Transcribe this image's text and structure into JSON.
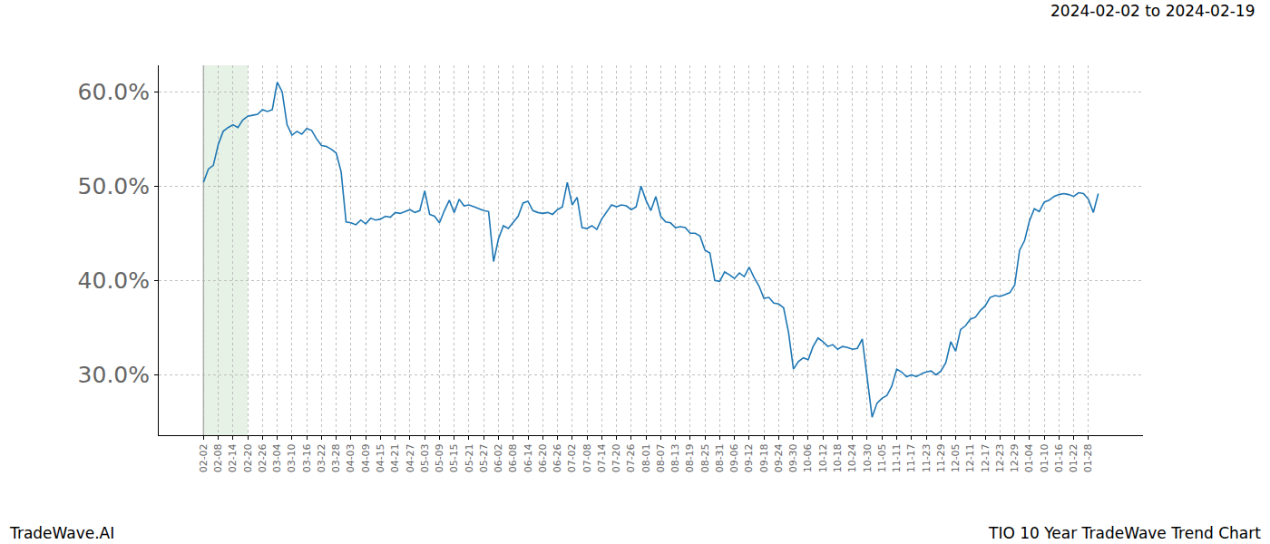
{
  "chart_data": {
    "type": "line",
    "title": "TIO 10 Year TradeWave Trend Chart",
    "subtitle": "2024-02-02 to 2024-02-19",
    "annotations": [
      "TradeWave.AI"
    ],
    "highlight": {
      "start": "02-02",
      "end": "02-20"
    },
    "categories": [
      "02-02",
      null,
      null,
      "02-08",
      null,
      null,
      "02-14",
      null,
      null,
      "02-20",
      null,
      null,
      "02-26",
      null,
      null,
      "03-04",
      null,
      null,
      "03-10",
      null,
      null,
      "03-16",
      null,
      null,
      "03-22",
      null,
      null,
      "03-28",
      null,
      null,
      "04-03",
      null,
      null,
      "04-09",
      null,
      null,
      "04-15",
      null,
      null,
      "04-21",
      null,
      null,
      "04-27",
      null,
      null,
      "05-03",
      null,
      null,
      "05-09",
      null,
      null,
      "05-15",
      null,
      null,
      "05-21",
      null,
      null,
      "05-27",
      null,
      null,
      "06-02",
      null,
      null,
      "06-08",
      null,
      null,
      "06-14",
      null,
      null,
      "06-20",
      null,
      null,
      "06-26",
      null,
      null,
      "07-02",
      null,
      null,
      "07-08",
      null,
      null,
      "07-14",
      null,
      null,
      "07-20",
      null,
      null,
      "07-26",
      null,
      null,
      "08-01",
      null,
      null,
      "08-07",
      null,
      null,
      "08-13",
      null,
      null,
      "08-19",
      null,
      null,
      "08-25",
      null,
      null,
      "08-31",
      null,
      null,
      "09-06",
      null,
      null,
      "09-12",
      null,
      null,
      "09-18",
      null,
      null,
      "09-24",
      null,
      null,
      "09-30",
      null,
      null,
      "10-06",
      null,
      null,
      "10-12",
      null,
      null,
      "10-18",
      null,
      null,
      "10-24",
      null,
      null,
      "10-30",
      null,
      null,
      "11-05",
      null,
      null,
      "11-11",
      null,
      null,
      "11-17",
      null,
      null,
      "11-23",
      null,
      null,
      "11-29",
      null,
      null,
      "12-05",
      null,
      null,
      "12-11",
      null,
      null,
      "12-17",
      null,
      null,
      "12-23",
      null,
      null,
      "12-29",
      null,
      null,
      "01-04",
      null,
      null,
      "01-10",
      null,
      null,
      "01-16",
      null,
      null,
      "01-22",
      null,
      null,
      "01-28",
      null,
      null
    ],
    "values": [
      50.4,
      51.8,
      52.2,
      54.4,
      55.8,
      56.2,
      56.5,
      56.2,
      57.0,
      57.4,
      57.5,
      57.6,
      58.1,
      57.9,
      58.1,
      61.0,
      60.0,
      56.5,
      55.4,
      55.8,
      55.5,
      56.1,
      55.9,
      55.0,
      54.3,
      54.2,
      53.9,
      53.5,
      51.5,
      46.2,
      46.1,
      45.9,
      46.4,
      46.0,
      46.6,
      46.4,
      46.5,
      46.8,
      46.7,
      47.2,
      47.1,
      47.3,
      47.5,
      47.2,
      47.4,
      49.5,
      47.0,
      46.8,
      46.1,
      47.4,
      48.5,
      47.2,
      48.6,
      47.9,
      48.0,
      47.8,
      47.6,
      47.4,
      47.3,
      42.0,
      44.4,
      45.8,
      45.5,
      46.2,
      46.8,
      48.2,
      48.4,
      47.4,
      47.2,
      47.1,
      47.2,
      47.0,
      47.5,
      47.8,
      50.4,
      48.0,
      48.8,
      45.6,
      45.5,
      45.8,
      45.4,
      46.5,
      47.2,
      48.0,
      47.8,
      48.0,
      47.9,
      47.5,
      47.8,
      50.0,
      48.5,
      47.4,
      48.9,
      46.8,
      46.2,
      46.1,
      45.6,
      45.7,
      45.6,
      45.0,
      45.0,
      44.7,
      43.2,
      42.9,
      40.0,
      39.9,
      40.9,
      40.6,
      40.2,
      40.8,
      40.4,
      41.4,
      40.3,
      39.4,
      38.1,
      38.2,
      37.6,
      37.5,
      37.1,
      34.5,
      30.6,
      31.4,
      31.8,
      31.6,
      33.0,
      33.9,
      33.5,
      33.0,
      33.2,
      32.7,
      33.0,
      32.9,
      32.7,
      32.8,
      33.8,
      29.6,
      25.5,
      27.0,
      27.5,
      27.8,
      28.8,
      30.6,
      30.3,
      29.8,
      30.0,
      29.8,
      30.1,
      30.3,
      30.4,
      30.0,
      30.4,
      31.3,
      33.5,
      32.5,
      34.8,
      35.2,
      35.9,
      36.1,
      36.8,
      37.3,
      38.2,
      38.4,
      38.3,
      38.5,
      38.7,
      39.5,
      43.2,
      44.2,
      46.3,
      47.6,
      47.3,
      48.3,
      48.5,
      48.9,
      49.1,
      49.2,
      49.1,
      48.9,
      49.3,
      49.2,
      48.6,
      47.2,
      49.2
    ],
    "color": "#1f77b4",
    "ylim": [
      23.6,
      62.8
    ],
    "yticks": [
      {
        "value": 30,
        "label": "30.0%"
      },
      {
        "value": 40,
        "label": "40.0%"
      },
      {
        "value": 50,
        "label": "50.0%"
      },
      {
        "value": 60,
        "label": "60.0%"
      }
    ],
    "grid": true
  }
}
